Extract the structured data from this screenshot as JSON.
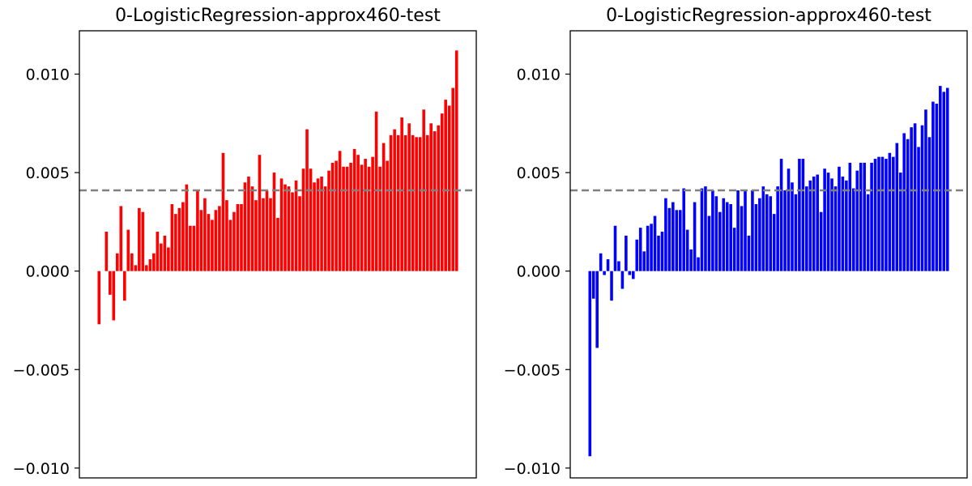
{
  "chart_data": [
    {
      "type": "bar",
      "title": "0-LogisticRegression-approx460-test",
      "xlabel": "",
      "ylabel": "",
      "ylim": [
        -0.0105,
        0.0122
      ],
      "yticks": [
        -0.01,
        -0.005,
        0.0,
        0.005,
        0.01
      ],
      "ytick_labels": [
        "−0.010",
        "−0.005",
        "0.000",
        "0.005",
        "0.010"
      ],
      "bar_color": "#ff0000",
      "reference_line": {
        "y": 0.0041,
        "style": "dashed",
        "color": "#808080"
      },
      "grid": false,
      "values": [
        -0.0027,
        0.0,
        0.002,
        -0.0012,
        -0.0025,
        0.0009,
        0.0033,
        -0.0015,
        0.0021,
        0.0009,
        0.0003,
        0.0032,
        0.003,
        0.0003,
        0.0006,
        0.0009,
        0.002,
        0.0014,
        0.0018,
        0.0012,
        0.0034,
        0.0029,
        0.0032,
        0.0035,
        0.0044,
        0.0023,
        0.0023,
        0.0041,
        0.0031,
        0.0037,
        0.0029,
        0.0026,
        0.0031,
        0.0033,
        0.006,
        0.0036,
        0.0026,
        0.003,
        0.0034,
        0.0034,
        0.0045,
        0.0048,
        0.0043,
        0.0036,
        0.0059,
        0.0037,
        0.0041,
        0.0037,
        0.005,
        0.0027,
        0.0047,
        0.0044,
        0.0043,
        0.004,
        0.0046,
        0.0038,
        0.0052,
        0.0072,
        0.0052,
        0.0045,
        0.0047,
        0.0048,
        0.0043,
        0.0051,
        0.0055,
        0.0056,
        0.0061,
        0.0053,
        0.0053,
        0.0055,
        0.0062,
        0.0059,
        0.0054,
        0.0057,
        0.0053,
        0.0058,
        0.0081,
        0.0053,
        0.0065,
        0.0056,
        0.0069,
        0.0072,
        0.0069,
        0.0078,
        0.0069,
        0.0075,
        0.0069,
        0.0068,
        0.0068,
        0.0082,
        0.0069,
        0.0075,
        0.0071,
        0.0074,
        0.008,
        0.0087,
        0.0084,
        0.0093,
        0.0112
      ]
    },
    {
      "type": "bar",
      "title": "0-LogisticRegression-approx460-test",
      "xlabel": "",
      "ylabel": "",
      "ylim": [
        -0.0105,
        0.0122
      ],
      "yticks": [
        -0.01,
        -0.005,
        0.0,
        0.005,
        0.01
      ],
      "ytick_labels": [
        "−0.010",
        "−0.005",
        "0.000",
        "0.005",
        "0.010"
      ],
      "bar_color": "#0000ff",
      "reference_line": {
        "y": 0.0041,
        "style": "dashed",
        "color": "#808080"
      },
      "grid": false,
      "values": [
        -0.0094,
        -0.0014,
        -0.0039,
        0.0009,
        -0.0002,
        0.0006,
        -0.0015,
        0.0023,
        0.0005,
        -0.0009,
        0.0018,
        -0.0002,
        -0.0004,
        0.0016,
        0.0022,
        0.001,
        0.0023,
        0.0024,
        0.0028,
        0.0018,
        0.002,
        0.0037,
        0.0032,
        0.0035,
        0.0031,
        0.0031,
        0.0042,
        0.0021,
        0.0011,
        0.0035,
        0.0007,
        0.0042,
        0.0043,
        0.0028,
        0.0041,
        0.0038,
        0.003,
        0.0037,
        0.0035,
        0.0034,
        0.0022,
        0.0041,
        0.0033,
        0.0041,
        0.0018,
        0.0041,
        0.0034,
        0.0037,
        0.0043,
        0.0039,
        0.0038,
        0.0029,
        0.0043,
        0.0057,
        0.0041,
        0.0052,
        0.0045,
        0.0039,
        0.0057,
        0.0057,
        0.0043,
        0.0046,
        0.0048,
        0.0049,
        0.003,
        0.0052,
        0.005,
        0.0047,
        0.0043,
        0.0053,
        0.0048,
        0.0046,
        0.0055,
        0.0042,
        0.0051,
        0.0055,
        0.0055,
        0.0039,
        0.0055,
        0.0057,
        0.0058,
        0.0058,
        0.0057,
        0.006,
        0.0058,
        0.0065,
        0.005,
        0.007,
        0.0067,
        0.0073,
        0.0075,
        0.0063,
        0.0074,
        0.0082,
        0.0068,
        0.0086,
        0.0085,
        0.0094,
        0.0091,
        0.0093
      ]
    }
  ]
}
